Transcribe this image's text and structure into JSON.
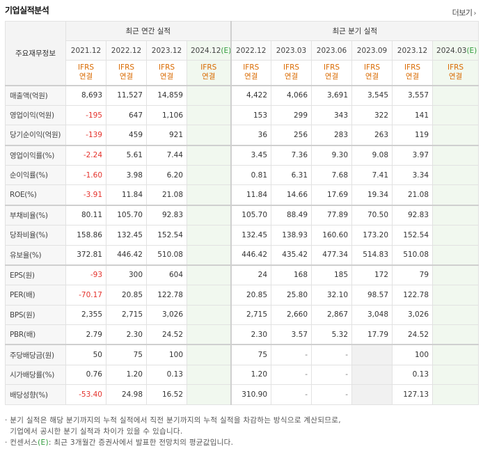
{
  "title": "기업실적분석",
  "more_label": "더보기",
  "header": {
    "row_head": "주요재무정보",
    "annual_group": "최근 연간 실적",
    "quarter_group": "최근 분기 실적",
    "annual_periods": [
      "2021.12",
      "2022.12",
      "2023.12",
      "2024.12"
    ],
    "annual_estimate_mark": "(E)",
    "quarter_periods": [
      "2022.12",
      "2023.03",
      "2023.06",
      "2023.09",
      "2023.12",
      "2024.03"
    ],
    "quarter_estimate_mark": "(E)",
    "basis_line1": "IFRS",
    "basis_line2": "연결"
  },
  "rows": [
    {
      "label": "매출액(억원)",
      "annual": [
        "8,693",
        "11,527",
        "14,859",
        ""
      ],
      "quarter": [
        "4,422",
        "4,066",
        "3,691",
        "3,545",
        "3,557",
        ""
      ]
    },
    {
      "label": "영업이익(억원)",
      "annual": [
        "-195",
        "647",
        "1,106",
        ""
      ],
      "quarter": [
        "153",
        "299",
        "343",
        "322",
        "141",
        ""
      ]
    },
    {
      "label": "당기순이익(억원)",
      "annual": [
        "-139",
        "459",
        "921",
        ""
      ],
      "quarter": [
        "36",
        "256",
        "283",
        "263",
        "119",
        ""
      ]
    },
    {
      "label": "영업이익률(%)",
      "annual": [
        "-2.24",
        "5.61",
        "7.44",
        ""
      ],
      "quarter": [
        "3.45",
        "7.36",
        "9.30",
        "9.08",
        "3.97",
        ""
      ]
    },
    {
      "label": "순이익률(%)",
      "annual": [
        "-1.60",
        "3.98",
        "6.20",
        ""
      ],
      "quarter": [
        "0.81",
        "6.31",
        "7.68",
        "7.41",
        "3.34",
        ""
      ]
    },
    {
      "label": "ROE(%)",
      "annual": [
        "-3.91",
        "11.84",
        "21.08",
        ""
      ],
      "quarter": [
        "11.84",
        "14.66",
        "17.69",
        "19.34",
        "21.08",
        ""
      ]
    },
    {
      "label": "부채비율(%)",
      "annual": [
        "80.11",
        "105.70",
        "92.83",
        ""
      ],
      "quarter": [
        "105.70",
        "88.49",
        "77.89",
        "70.50",
        "92.83",
        ""
      ]
    },
    {
      "label": "당좌비율(%)",
      "annual": [
        "158.86",
        "132.45",
        "152.54",
        ""
      ],
      "quarter": [
        "132.45",
        "138.93",
        "160.60",
        "173.20",
        "152.54",
        ""
      ]
    },
    {
      "label": "유보율(%)",
      "annual": [
        "372.81",
        "446.42",
        "510.08",
        ""
      ],
      "quarter": [
        "446.42",
        "435.42",
        "477.34",
        "514.83",
        "510.08",
        ""
      ]
    },
    {
      "label": "EPS(원)",
      "annual": [
        "-93",
        "300",
        "604",
        ""
      ],
      "quarter": [
        "24",
        "168",
        "185",
        "172",
        "79",
        ""
      ]
    },
    {
      "label": "PER(배)",
      "annual": [
        "-70.17",
        "20.85",
        "122.78",
        ""
      ],
      "quarter": [
        "20.85",
        "25.80",
        "32.10",
        "98.57",
        "122.78",
        ""
      ]
    },
    {
      "label": "BPS(원)",
      "annual": [
        "2,355",
        "2,715",
        "3,026",
        ""
      ],
      "quarter": [
        "2,715",
        "2,660",
        "2,867",
        "3,048",
        "3,026",
        ""
      ]
    },
    {
      "label": "PBR(배)",
      "annual": [
        "2.79",
        "2.30",
        "24.52",
        ""
      ],
      "quarter": [
        "2.30",
        "3.57",
        "5.32",
        "17.79",
        "24.52",
        ""
      ]
    },
    {
      "label": "주당배당금(원)",
      "annual": [
        "50",
        "75",
        "100",
        ""
      ],
      "quarter": [
        "75",
        "-",
        "-",
        "",
        "100",
        ""
      ]
    },
    {
      "label": "시가배당률(%)",
      "annual": [
        "0.76",
        "1.20",
        "0.13",
        ""
      ],
      "quarter": [
        "1.20",
        "-",
        "-",
        "",
        "0.13",
        ""
      ]
    },
    {
      "label": "배당성향(%)",
      "annual": [
        "-53.40",
        "24.98",
        "16.52",
        ""
      ],
      "quarter": [
        "310.90",
        "-",
        "-",
        "",
        "127.13",
        ""
      ]
    }
  ],
  "notes": {
    "line1": "분기 실적은 해당 분기까지의 누적 실적에서 직전 분기까지의 누적 실적을 차감하는 방식으로 계산되므로,",
    "line2": "기업에서 공시한 분기 실적과 차이가 있을 수 있습니다.",
    "line3_prefix": "컨센서스",
    "line3_mark": "(E)",
    "line3_suffix": ": 최근 3개월간 증권사에서 발표한 전망치의 평균값입니다."
  },
  "colors": {
    "negative": "#e4322c",
    "basis": "#d96a00",
    "estimate_bg": "#f1f8ef",
    "estimate_mark": "#2f9b3a"
  }
}
